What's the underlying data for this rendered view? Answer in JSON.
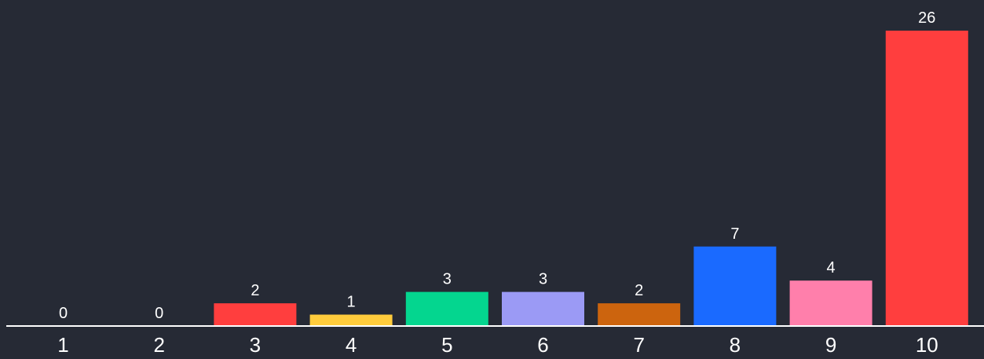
{
  "chart_data": {
    "type": "bar",
    "title": "",
    "xlabel": "",
    "ylabel": "",
    "categories": [
      "1",
      "2",
      "3",
      "4",
      "5",
      "6",
      "7",
      "8",
      "9",
      "10"
    ],
    "values": [
      0,
      0,
      2,
      1,
      3,
      3,
      2,
      7,
      4,
      26
    ],
    "value_labels": [
      "0",
      "0",
      "2",
      "1",
      "3",
      "3",
      "2",
      "7",
      "4",
      "26"
    ],
    "ylim": [
      0,
      26
    ],
    "grid": false,
    "legend": "none",
    "colors": [
      "#ff3e3e",
      "#ff3e3e",
      "#ff3e3e",
      "#ffcc3c",
      "#04d68f",
      "#9b9af5",
      "#cc640e",
      "#1a6aff",
      "#ff7fab",
      "#ff3e3e"
    ],
    "background": "#262a35",
    "axis_color": "#ffffff",
    "text_color": "#ffffff"
  }
}
